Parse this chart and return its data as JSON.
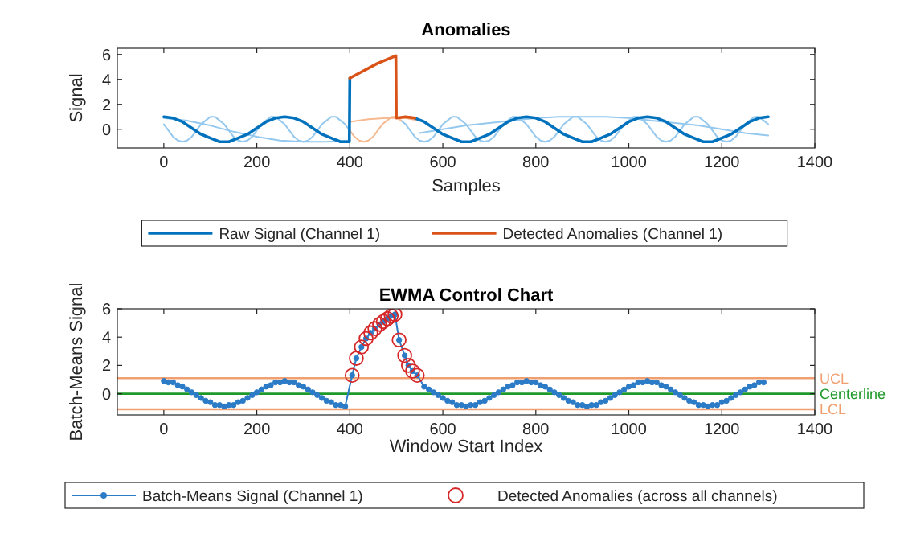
{
  "chart_data": [
    {
      "type": "line",
      "title": "Anomalies",
      "xlabel": "Samples",
      "ylabel": "Signal",
      "xlim": [
        -100,
        1400
      ],
      "xticks": [
        0,
        200,
        400,
        600,
        800,
        1000,
        1200,
        1400
      ],
      "ylim": [
        -1.5,
        6.5
      ],
      "yticks": [
        0,
        2,
        4,
        6
      ],
      "legend": "bottom",
      "series": [
        {
          "color": "#94c8ee",
          "x": [
            0,
            10,
            20,
            30,
            40,
            50,
            60,
            70,
            80,
            90,
            100,
            110,
            120,
            130,
            140,
            150,
            160,
            170,
            180,
            190,
            200,
            210,
            220,
            230,
            240,
            250,
            260,
            270,
            280,
            290,
            300,
            310,
            320,
            330,
            340,
            350,
            360,
            370,
            380,
            390,
            400,
            410,
            420,
            430,
            440,
            450,
            460,
            470,
            480,
            490,
            500,
            510,
            520,
            530,
            540,
            550,
            560,
            570,
            580,
            590,
            600,
            610,
            620,
            630,
            640,
            650,
            660,
            670,
            680,
            690,
            700,
            710,
            720,
            730,
            740,
            750,
            760,
            770,
            780,
            790,
            800,
            810,
            820,
            830,
            840,
            850,
            860,
            870,
            880,
            890,
            900,
            910,
            920,
            930,
            940,
            950,
            960,
            970,
            980,
            990,
            1000,
            1010,
            1020,
            1030,
            1040,
            1050,
            1060,
            1070,
            1080,
            1090,
            1100,
            1110,
            1120,
            1130,
            1140,
            1150,
            1160,
            1170,
            1180,
            1190,
            1200,
            1210,
            1220,
            1230,
            1240,
            1250,
            1260,
            1270,
            1280,
            1290,
            1300
          ],
          "values": [
            0.4,
            -0.1,
            -0.6,
            -0.9,
            -1,
            -0.9,
            -0.6,
            -0.1,
            0.4,
            0.7,
            1,
            1,
            0.7,
            0.4,
            -0.1,
            -0.6,
            -0.9,
            -1,
            -0.9,
            -0.6,
            -0.1,
            0.4,
            0.7,
            1,
            1,
            0.7,
            0.4,
            -0.1,
            -0.6,
            -0.9,
            -1,
            -0.9,
            -0.6,
            -0.1,
            0.4,
            0.7,
            1,
            1,
            0.7,
            0.4,
            -0.1,
            null,
            null,
            null,
            null,
            null,
            null,
            null,
            null,
            null,
            null,
            0.7,
            0.4,
            -0.1,
            -0.6,
            -0.9,
            -1,
            -0.9,
            -0.6,
            -0.1,
            0.4,
            0.7,
            1,
            1,
            0.7,
            0.4,
            -0.1,
            -0.6,
            -0.9,
            -1,
            -0.9,
            -0.6,
            -0.1,
            0.4,
            0.7,
            1,
            1,
            0.7,
            0.4,
            -0.1,
            -0.6,
            -0.9,
            -1,
            -0.9,
            -0.6,
            -0.1,
            0.4,
            0.7,
            1,
            1,
            0.7,
            0.4,
            -0.1,
            -0.6,
            -0.9,
            -1,
            -0.9,
            -0.6,
            -0.1,
            0.4,
            0.7,
            1,
            1,
            0.7,
            0.4,
            -0.1,
            -0.6,
            -0.9,
            -1,
            -0.9,
            -0.6,
            -0.1,
            0.4,
            0.7,
            1,
            1,
            0.7,
            0.4,
            -0.1,
            -0.6,
            -0.9,
            -1,
            -0.9,
            -0.6,
            -0.1,
            0.4,
            0.7,
            1,
            1,
            0.7,
            0.4
          ]
        },
        {
          "color": "#94c8ee",
          "x": [
            0,
            50,
            100,
            150,
            200,
            250,
            300,
            350,
            400,
            475,
            550,
            600,
            650,
            700,
            750,
            800,
            850,
            900,
            950,
            1000,
            1050,
            1100,
            1150,
            1200,
            1250,
            1300
          ],
          "values": [
            0.9,
            0.7,
            0.3,
            -0.2,
            -0.6,
            -0.9,
            -1,
            -1,
            -0.9,
            null,
            -0.3,
            0,
            0.3,
            0.5,
            0.7,
            0.9,
            1,
            1,
            1,
            0.9,
            0.7,
            0.5,
            0.3,
            0,
            -0.3,
            -0.5
          ]
        },
        {
          "color": "#f7b98f",
          "x": [
            400,
            440,
            480,
            520,
            550
          ],
          "values": [
            0.6,
            0.8,
            0.9,
            0.9,
            0.7
          ]
        },
        {
          "color": "#f7b98f",
          "x": [
            400,
            410,
            420,
            430,
            440,
            450,
            460,
            470,
            480,
            490,
            500,
            510
          ],
          "values": [
            -0.1,
            -0.6,
            -0.9,
            -1,
            -0.9,
            -0.6,
            -0.1,
            0.4,
            0.7,
            1,
            1,
            0.7
          ]
        },
        {
          "name": "Raw Signal (Channel 1)",
          "color": "#0072bd",
          "x": [
            0,
            20,
            40,
            60,
            80,
            100,
            120,
            140,
            160,
            180,
            200,
            220,
            240,
            260,
            280,
            300,
            320,
            340,
            360,
            380,
            399,
            400,
            410,
            540,
            560,
            580,
            600,
            620,
            640,
            660,
            680,
            700,
            720,
            740,
            760,
            780,
            800,
            820,
            840,
            860,
            880,
            900,
            920,
            940,
            960,
            980,
            1000,
            1020,
            1040,
            1060,
            1080,
            1100,
            1120,
            1140,
            1160,
            1180,
            1200,
            1220,
            1240,
            1260,
            1280,
            1300
          ],
          "values": [
            1,
            0.9,
            0.6,
            0.1,
            -0.4,
            -0.7,
            -1,
            -1,
            -0.7,
            -0.4,
            0.1,
            0.6,
            0.9,
            1,
            0.9,
            0.6,
            0.1,
            -0.4,
            -0.7,
            -1,
            -1,
            4.1,
            null,
            0.9,
            0.6,
            0.1,
            -0.4,
            -0.7,
            -1,
            -1,
            -0.7,
            -0.4,
            0.1,
            0.6,
            0.9,
            1,
            0.9,
            0.6,
            0.1,
            -0.4,
            -0.7,
            -1,
            -1,
            -0.7,
            -0.4,
            0.1,
            0.6,
            0.9,
            1,
            0.9,
            0.6,
            0.1,
            -0.4,
            -0.7,
            -1,
            -1,
            -0.7,
            -0.4,
            0.1,
            0.6,
            0.9,
            1
          ]
        },
        {
          "name": "Detected Anomalies (Channel 1)",
          "color": "#d95319",
          "x": [
            400,
            420,
            440,
            460,
            480,
            499,
            500,
            520,
            540
          ],
          "values": [
            4.1,
            4.5,
            4.9,
            5.3,
            5.6,
            5.9,
            0.9,
            1,
            0.9
          ]
        }
      ]
    },
    {
      "type": "line",
      "title": "EWMA Control Chart",
      "xlabel": "Window Start Index",
      "ylabel": "Batch-Means Signal",
      "xlim": [
        -100,
        1400
      ],
      "xticks": [
        0,
        200,
        400,
        600,
        800,
        1000,
        1200,
        1400
      ],
      "ylim": [
        -1.5,
        6
      ],
      "yticks": [
        0,
        2,
        4,
        6
      ],
      "legend": "bottom",
      "ref_lines": [
        {
          "axis": "y",
          "value": 0,
          "label": "Centerline",
          "color": "#1f9a2a"
        },
        {
          "axis": "y",
          "value": 1.1,
          "label": "UCL",
          "color": "#f0a070"
        },
        {
          "axis": "y",
          "value": -1.1,
          "label": "LCL",
          "color": "#f0a070"
        }
      ],
      "series": [
        {
          "name": "Batch-Means Signal (Channel 1)",
          "color": "#2b7bc7",
          "marker": "circle",
          "x": [
            0,
            10,
            20,
            30,
            40,
            50,
            60,
            70,
            80,
            90,
            100,
            110,
            120,
            130,
            140,
            150,
            160,
            170,
            180,
            190,
            200,
            210,
            220,
            230,
            240,
            250,
            260,
            270,
            280,
            290,
            300,
            310,
            320,
            330,
            340,
            350,
            360,
            370,
            380,
            390,
            405,
            414,
            425,
            435,
            445,
            454,
            464,
            472,
            481,
            489,
            497,
            506,
            518,
            526,
            535,
            545,
            560,
            570,
            580,
            590,
            600,
            610,
            620,
            630,
            640,
            650,
            660,
            670,
            680,
            690,
            700,
            710,
            720,
            730,
            740,
            750,
            760,
            770,
            780,
            790,
            800,
            810,
            820,
            830,
            840,
            850,
            860,
            870,
            880,
            890,
            900,
            910,
            920,
            930,
            940,
            950,
            960,
            970,
            980,
            990,
            1000,
            1010,
            1020,
            1030,
            1040,
            1050,
            1060,
            1070,
            1080,
            1090,
            1100,
            1110,
            1120,
            1130,
            1140,
            1150,
            1160,
            1170,
            1180,
            1190,
            1200,
            1210,
            1220,
            1230,
            1240,
            1250,
            1260,
            1270,
            1280,
            1290
          ],
          "values": [
            0.9,
            0.8,
            0.8,
            0.6,
            0.5,
            0.3,
            0.1,
            -0.1,
            -0.3,
            -0.5,
            -0.6,
            -0.8,
            -0.8,
            -0.9,
            -0.8,
            -0.8,
            -0.6,
            -0.5,
            -0.3,
            -0.1,
            0.1,
            0.3,
            0.5,
            0.6,
            0.8,
            0.8,
            0.9,
            0.8,
            0.8,
            0.6,
            0.5,
            0.3,
            0.1,
            -0.1,
            -0.3,
            -0.5,
            -0.6,
            -0.8,
            -0.8,
            -0.9,
            1.3,
            2.5,
            3.3,
            3.9,
            4.3,
            4.6,
            4.9,
            5.1,
            5.3,
            5.5,
            5.6,
            3.8,
            2.7,
            2.0,
            1.6,
            1.3,
            0.5,
            0.3,
            0.1,
            -0.1,
            -0.3,
            -0.5,
            -0.6,
            -0.8,
            -0.8,
            -0.9,
            -0.8,
            -0.8,
            -0.6,
            -0.5,
            -0.3,
            -0.1,
            0.1,
            0.3,
            0.5,
            0.6,
            0.8,
            0.8,
            0.9,
            0.8,
            0.8,
            0.6,
            0.5,
            0.3,
            0.1,
            -0.1,
            -0.3,
            -0.5,
            -0.6,
            -0.8,
            -0.8,
            -0.9,
            -0.8,
            -0.8,
            -0.6,
            -0.5,
            -0.3,
            -0.1,
            0.1,
            0.3,
            0.5,
            0.6,
            0.8,
            0.8,
            0.9,
            0.8,
            0.8,
            0.6,
            0.5,
            0.3,
            0.1,
            -0.1,
            -0.3,
            -0.5,
            -0.6,
            -0.8,
            -0.8,
            -0.9,
            -0.8,
            -0.8,
            -0.6,
            -0.5,
            -0.3,
            -0.1,
            0.1,
            0.3,
            0.5,
            0.6,
            0.8,
            0.8
          ]
        },
        {
          "name": "Detected Anomalies (across all channels)",
          "type": "scatter",
          "color": "#d62728",
          "marker": "circle",
          "x": [
            405,
            414,
            425,
            435,
            445,
            454,
            464,
            472,
            481,
            489,
            497,
            506,
            518,
            526,
            535,
            545
          ],
          "values": [
            1.3,
            2.5,
            3.3,
            3.9,
            4.3,
            4.6,
            4.9,
            5.1,
            5.3,
            5.5,
            5.6,
            3.8,
            2.7,
            2.0,
            1.6,
            1.3
          ]
        }
      ]
    }
  ]
}
